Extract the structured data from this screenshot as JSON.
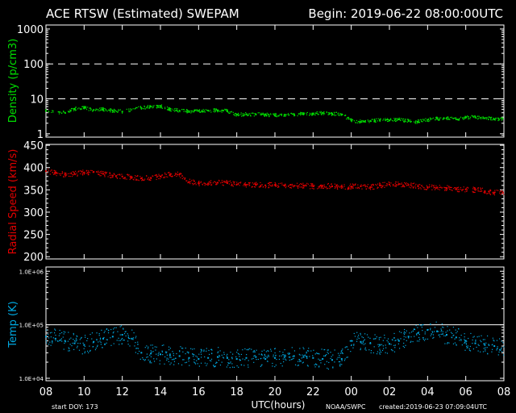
{
  "header": {
    "title": "ACE RTSW (Estimated) SWEPAM",
    "begin": "Begin: 2019-06-22 08:00:00UTC"
  },
  "footer": {
    "start_doy": "start DOY: 173",
    "xlabel": "UTC(hours)",
    "source": "NOAA/SWPC",
    "created": "created:2019-06-23 07:09:04UTC"
  },
  "x_ticks": [
    "08",
    "10",
    "12",
    "14",
    "16",
    "18",
    "20",
    "22",
    "00",
    "02",
    "04",
    "06",
    "08"
  ],
  "colors": {
    "density": "#00e000",
    "speed": "#e00000",
    "temp": "#00a8e0",
    "frame": "#ffffff",
    "background": "#000000"
  },
  "chart_data": [
    {
      "type": "scatter",
      "ylabel": "Density (p/cm3)",
      "yscale": "log",
      "ylim": [
        0.8,
        1300
      ],
      "y_ticks": [
        "1",
        "10",
        "100",
        "1000"
      ],
      "reference_lines": [
        10,
        100
      ],
      "xlim_hours": [
        0,
        24
      ],
      "series": [
        {
          "x": [
            0,
            1,
            1.5,
            2,
            2.5,
            3,
            3.5,
            4,
            5,
            5.5,
            6,
            6.5,
            7,
            7.5,
            8,
            8.5,
            9,
            9.5,
            10,
            10.5,
            11,
            11.5,
            12,
            12.5,
            13,
            13.5,
            14,
            14.5,
            15,
            15.5,
            16,
            16.5,
            17,
            17.5,
            18,
            18.5,
            19,
            19.5,
            20,
            20.5,
            21,
            21.5,
            22,
            22.5,
            23,
            23.5
          ],
          "y": [
            4.5,
            4.0,
            5.2,
            5.5,
            4.8,
            5.0,
            4.6,
            4.3,
            5.5,
            6.0,
            6.2,
            5.0,
            4.6,
            4.4,
            4.5,
            4.6,
            4.7,
            4.5,
            3.5,
            3.6,
            3.6,
            3.5,
            3.4,
            3.5,
            3.6,
            3.7,
            3.8,
            3.9,
            3.7,
            3.6,
            2.4,
            2.2,
            2.3,
            2.5,
            2.4,
            2.6,
            2.3,
            2.2,
            2.5,
            2.7,
            2.8,
            2.6,
            2.9,
            3.0,
            2.8,
            2.6
          ]
        }
      ]
    },
    {
      "type": "scatter",
      "ylabel": "Radial Speed (km/s)",
      "yscale": "linear",
      "ylim": [
        195,
        452
      ],
      "y_ticks": [
        "200",
        "250",
        "300",
        "350",
        "400",
        "450"
      ],
      "xlim_hours": [
        0,
        24
      ],
      "series": [
        {
          "x": [
            0,
            0.5,
            1,
            1.5,
            2,
            2.5,
            3,
            3.5,
            4,
            4.5,
            5,
            5.5,
            6,
            6.5,
            7,
            7.5,
            8,
            8.5,
            9,
            9.5,
            10,
            10.5,
            11,
            11.5,
            12,
            12.5,
            13,
            13.5,
            14,
            14.5,
            15,
            15.5,
            16,
            16.5,
            17,
            17.5,
            18,
            18.5,
            19,
            19.5,
            20,
            20.5,
            21,
            21.5,
            22,
            22.5,
            23,
            23.5
          ],
          "y": [
            392,
            388,
            384,
            386,
            389,
            390,
            386,
            382,
            380,
            378,
            376,
            377,
            380,
            384,
            385,
            368,
            365,
            364,
            366,
            365,
            362,
            361,
            362,
            360,
            361,
            360,
            359,
            360,
            358,
            359,
            358,
            357,
            357,
            358,
            356,
            360,
            362,
            363,
            361,
            358,
            356,
            355,
            354,
            352,
            351,
            350,
            347,
            344
          ]
        }
      ]
    },
    {
      "type": "scatter",
      "ylabel": "Temp (K)",
      "yscale": "log",
      "ylim": [
        9000,
        1200000
      ],
      "y_ticks": [
        "1.0E+04",
        "1.0E+05",
        "1.0E+06"
      ],
      "reference_lines": [
        100000
      ],
      "xlim_hours": [
        0,
        24
      ],
      "series": [
        {
          "x": [
            0,
            0.5,
            1,
            1.5,
            2,
            2.5,
            3,
            3.5,
            4,
            4.5,
            5,
            5.5,
            6,
            6.5,
            7,
            7.5,
            8,
            8.5,
            9,
            9.5,
            10,
            10.5,
            11,
            11.5,
            12,
            12.5,
            13,
            13.5,
            14,
            14.5,
            15,
            15.5,
            16,
            16.5,
            17,
            17.5,
            18,
            18.5,
            19,
            19.5,
            20,
            20.5,
            21,
            21.5,
            22,
            22.5,
            23,
            23.5
          ],
          "y": [
            60000,
            55000,
            50000,
            45000,
            42000,
            48000,
            55000,
            60000,
            65000,
            55000,
            30000,
            29000,
            28000,
            27000,
            26000,
            24000,
            23000,
            24000,
            25000,
            24000,
            23000,
            24000,
            25000,
            23000,
            24000,
            25000,
            26000,
            25000,
            24000,
            23000,
            22000,
            23000,
            50000,
            48000,
            45000,
            42000,
            44000,
            50000,
            60000,
            70000,
            80000,
            75000,
            65000,
            58000,
            50000,
            45000,
            42000,
            40000
          ]
        }
      ]
    }
  ]
}
